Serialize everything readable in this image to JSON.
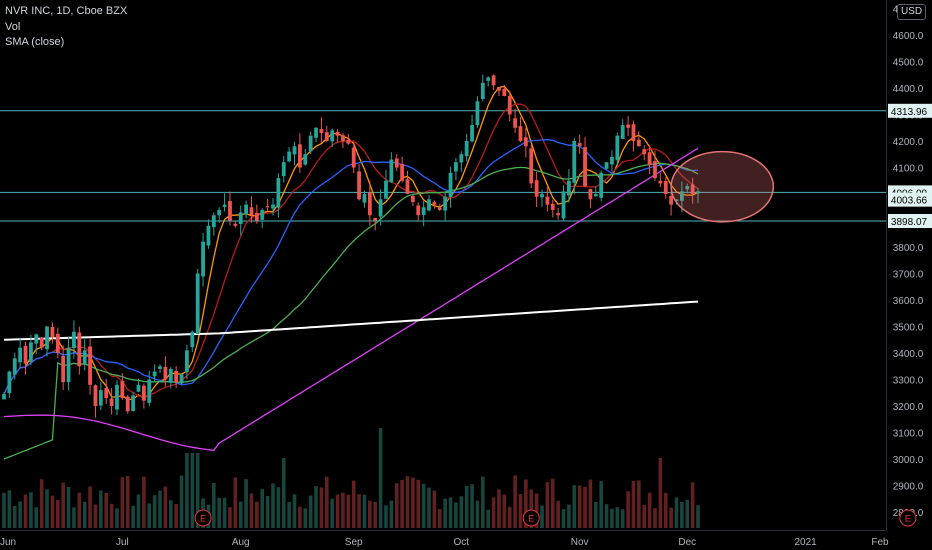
{
  "legend": {
    "symbol": "NVR INC, 1D, Cboe BZX",
    "vol": "Vol",
    "sma": "SMA (close)"
  },
  "currency_label": "USD",
  "chart_data": {
    "type": "candlestick",
    "title": "NVR INC, 1D, Cboe BZX",
    "ylim": [
      2750,
      4700
    ],
    "y_ticks": [
      2800,
      2900,
      3000,
      3100,
      3200,
      3300,
      3400,
      3500,
      3600,
      3700,
      3800,
      3900,
      4000,
      4100,
      4200,
      4300,
      4400,
      4500,
      4600,
      4700
    ],
    "x_labels": [
      {
        "label": "Jun",
        "day": 0
      },
      {
        "label": "Jul",
        "day": 22
      },
      {
        "label": "Aug",
        "day": 44
      },
      {
        "label": "Sep",
        "day": 65
      },
      {
        "label": "Oct",
        "day": 85
      },
      {
        "label": "Nov",
        "day": 107
      },
      {
        "label": "Dec",
        "day": 127
      },
      {
        "label": "2021",
        "day": 149
      },
      {
        "label": "Feb",
        "day": 170
      }
    ],
    "horizontal_lines": [
      {
        "price": 4313.96,
        "label": "4313.96"
      },
      {
        "price": 4006.09,
        "label": "4006.09"
      },
      {
        "price": 3898.07,
        "label": "3898.07"
      }
    ],
    "last_price": {
      "value": 4003.66,
      "label": "4003.66"
    },
    "earnings_markers": [
      {
        "day": 37,
        "label": "E"
      },
      {
        "day": 98,
        "label": "E"
      },
      {
        "day": 168,
        "label": "E"
      }
    ],
    "highlight_ellipse": {
      "day_from": 124,
      "day_to": 143,
      "price_from": 3895,
      "price_to": 4160
    },
    "closes": [
      3245,
      3330,
      3380,
      3420,
      3360,
      3440,
      3470,
      3420,
      3500,
      3460,
      3400,
      3290,
      3420,
      3480,
      3350,
      3410,
      3280,
      3200,
      3260,
      3230,
      3200,
      3280,
      3230,
      3180,
      3240,
      3280,
      3220,
      3300,
      3330,
      3350,
      3300,
      3340,
      3290,
      3320,
      3410,
      3480,
      3700,
      3820,
      3880,
      3920,
      3940,
      3960,
      3900,
      3880,
      3930,
      3960,
      3920,
      3900,
      3940,
      3950,
      3960,
      4060,
      4120,
      4160,
      4180,
      4100,
      4150,
      4220,
      4250,
      4230,
      4200,
      4240,
      4220,
      4200,
      4190,
      4100,
      3980,
      4000,
      3920,
      3900,
      3980,
      4050,
      4130,
      4100,
      4050,
      4000,
      3970,
      3920,
      3950,
      3980,
      3960,
      3940,
      3990,
      4080,
      4120,
      4150,
      4200,
      4260,
      4350,
      4420,
      4440,
      4410,
      4390,
      4370,
      4300,
      4250,
      4200,
      4180,
      4040,
      3990,
      4000,
      3960,
      3940,
      3920,
      4010,
      4050,
      4200,
      4180,
      4030,
      3980,
      4000,
      4080,
      4120,
      4140,
      4220,
      4260,
      4250,
      4200,
      4180,
      4150,
      4110,
      4060,
      4040,
      4000,
      3960,
      3980,
      4010,
      4030,
      4000,
      4010
    ],
    "bars": 130,
    "volume_max_price_units": 140,
    "series": [
      {
        "name": "SMA",
        "color": "#ff9800"
      },
      {
        "name": "SMA",
        "color": "#b71c1c"
      },
      {
        "name": "SMA",
        "color": "#2962ff"
      },
      {
        "name": "SMA",
        "color": "#4caf50"
      },
      {
        "name": "SMA",
        "color": "#e040fb"
      },
      {
        "name": "SMA",
        "color": "#ffffff"
      }
    ],
    "colors": {
      "up": "#26a69a",
      "down": "#ef5350",
      "level_line": "#4fb3bf",
      "axis_text": "#b2b5be",
      "ellipse": "#e57373"
    }
  }
}
